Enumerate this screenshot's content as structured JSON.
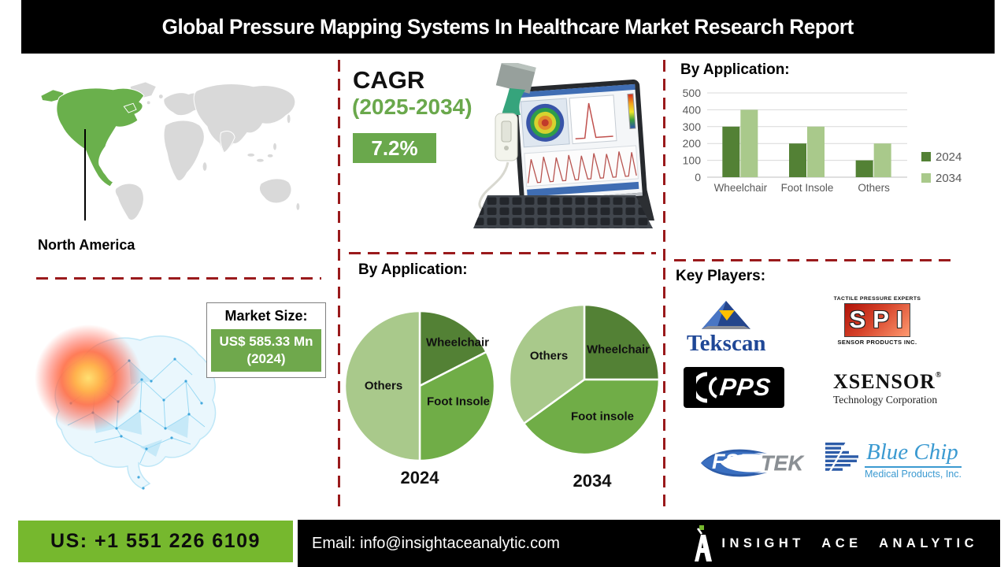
{
  "header": {
    "title": "Global Pressure Mapping Systems In Healthcare Market Research Report"
  },
  "colors": {
    "accent_green": "#6aa84c",
    "map_highlight_green": "#6ab04c",
    "land_gray": "#d9d9d9",
    "separator_red": "#9a1a1c",
    "series_2024_green": "#538135",
    "series_2034_green": "#a9c98b",
    "pie_medium_green": "#70ad47",
    "footer_green": "#76b82e"
  },
  "region": {
    "map_label": "North America"
  },
  "market_size": {
    "label": "Market Size:",
    "value": "US$ 585.33 Mn",
    "year": "(2024)"
  },
  "cagr": {
    "label": "CAGR",
    "period": "(2025-2034)",
    "value": "7.2%"
  },
  "pie_section": {
    "heading": "By Application:"
  },
  "key_players": {
    "heading": "Key Players:",
    "logos": [
      {
        "name": "Tekscan",
        "text": "Tekscan"
      },
      {
        "name": "SPI Sensor Products Inc.",
        "top": "TACTILE PRESSURE EXPERTS",
        "text": "SPI",
        "bottom": "SENSOR PRODUCTS INC."
      },
      {
        "name": "PPS",
        "text": "PPS"
      },
      {
        "name": "XSENSOR Technology Corporation",
        "text": "XSENSOR",
        "reg": "®",
        "sub": "Technology Corporation"
      },
      {
        "name": "FSRTEK",
        "text_fsr": "FSR",
        "text_tek": "TEK"
      },
      {
        "name": "Blue Chip Medical Products, Inc.",
        "text": "Blue Chip",
        "sub": "Medical Products, Inc."
      }
    ]
  },
  "footer": {
    "phone": "US: +1 551 226 6109",
    "email": "Email: info@insightaceanalytic.com",
    "brand": "INSIGHT ACE ANALYTIC"
  },
  "chart_data": [
    {
      "id": "bar-by-application",
      "type": "bar",
      "title": "By Application:",
      "categories": [
        "Wheelchair",
        "Foot Insole",
        "Others"
      ],
      "series": [
        {
          "name": "2024",
          "color": "#538135",
          "values": [
            300,
            200,
            100
          ]
        },
        {
          "name": "2034",
          "color": "#a9c98b",
          "values": [
            400,
            300,
            200
          ]
        }
      ],
      "xlabel": "",
      "ylabel": "",
      "ylim": [
        0,
        500
      ],
      "yticks": [
        0,
        100,
        200,
        300,
        400,
        500
      ],
      "grid": true,
      "legend_position": "right"
    },
    {
      "id": "pie-2024",
      "type": "pie",
      "year_label": "2024",
      "slices": [
        {
          "label": "Wheelchair",
          "value": 17.5,
          "color": "#538135"
        },
        {
          "label": "Foot Insole",
          "value": 32.5,
          "color": "#70ad47"
        },
        {
          "label": "Others",
          "value": 50,
          "color": "#a9c98b"
        }
      ]
    },
    {
      "id": "pie-2034",
      "type": "pie",
      "year_label": "2034",
      "slices": [
        {
          "label": "Wheelchair",
          "value": 25,
          "color": "#538135"
        },
        {
          "label": "Foot insole",
          "value": 40,
          "color": "#70ad47"
        },
        {
          "label": "Others",
          "value": 35,
          "color": "#a9c98b"
        }
      ]
    }
  ]
}
